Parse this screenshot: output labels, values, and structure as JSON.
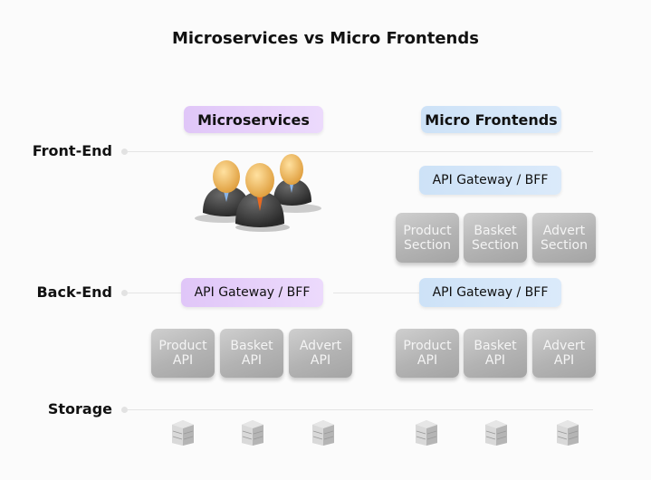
{
  "title": "Microservices vs Micro Frontends",
  "rows": {
    "front_end": "Front-End",
    "back_end": "Back-End",
    "storage": "Storage"
  },
  "microservices": {
    "heading": "Microservices",
    "gateway": "API Gateway / BFF",
    "apis": [
      {
        "l1": "Product",
        "l2": "API"
      },
      {
        "l1": "Basket",
        "l2": "API"
      },
      {
        "l1": "Advert",
        "l2": "API"
      }
    ]
  },
  "micro_frontends": {
    "heading": "Micro Frontends",
    "frontend_gateway": "API Gateway / BFF",
    "sections": [
      {
        "l1": "Product",
        "l2": "Section"
      },
      {
        "l1": "Basket",
        "l2": "Section"
      },
      {
        "l1": "Advert",
        "l2": "Section"
      }
    ],
    "backend_gateway": "API Gateway / BFF",
    "apis": [
      {
        "l1": "Product",
        "l2": "API"
      },
      {
        "l1": "Basket",
        "l2": "API"
      },
      {
        "l1": "Advert",
        "l2": "API"
      }
    ]
  },
  "icons": {
    "team": "people-group-icon",
    "storage": "database-server-icon"
  },
  "colors": {
    "microservices": "#e6cffa",
    "micro_frontends": "#d3e5f8",
    "box": "#b8b8b8"
  }
}
